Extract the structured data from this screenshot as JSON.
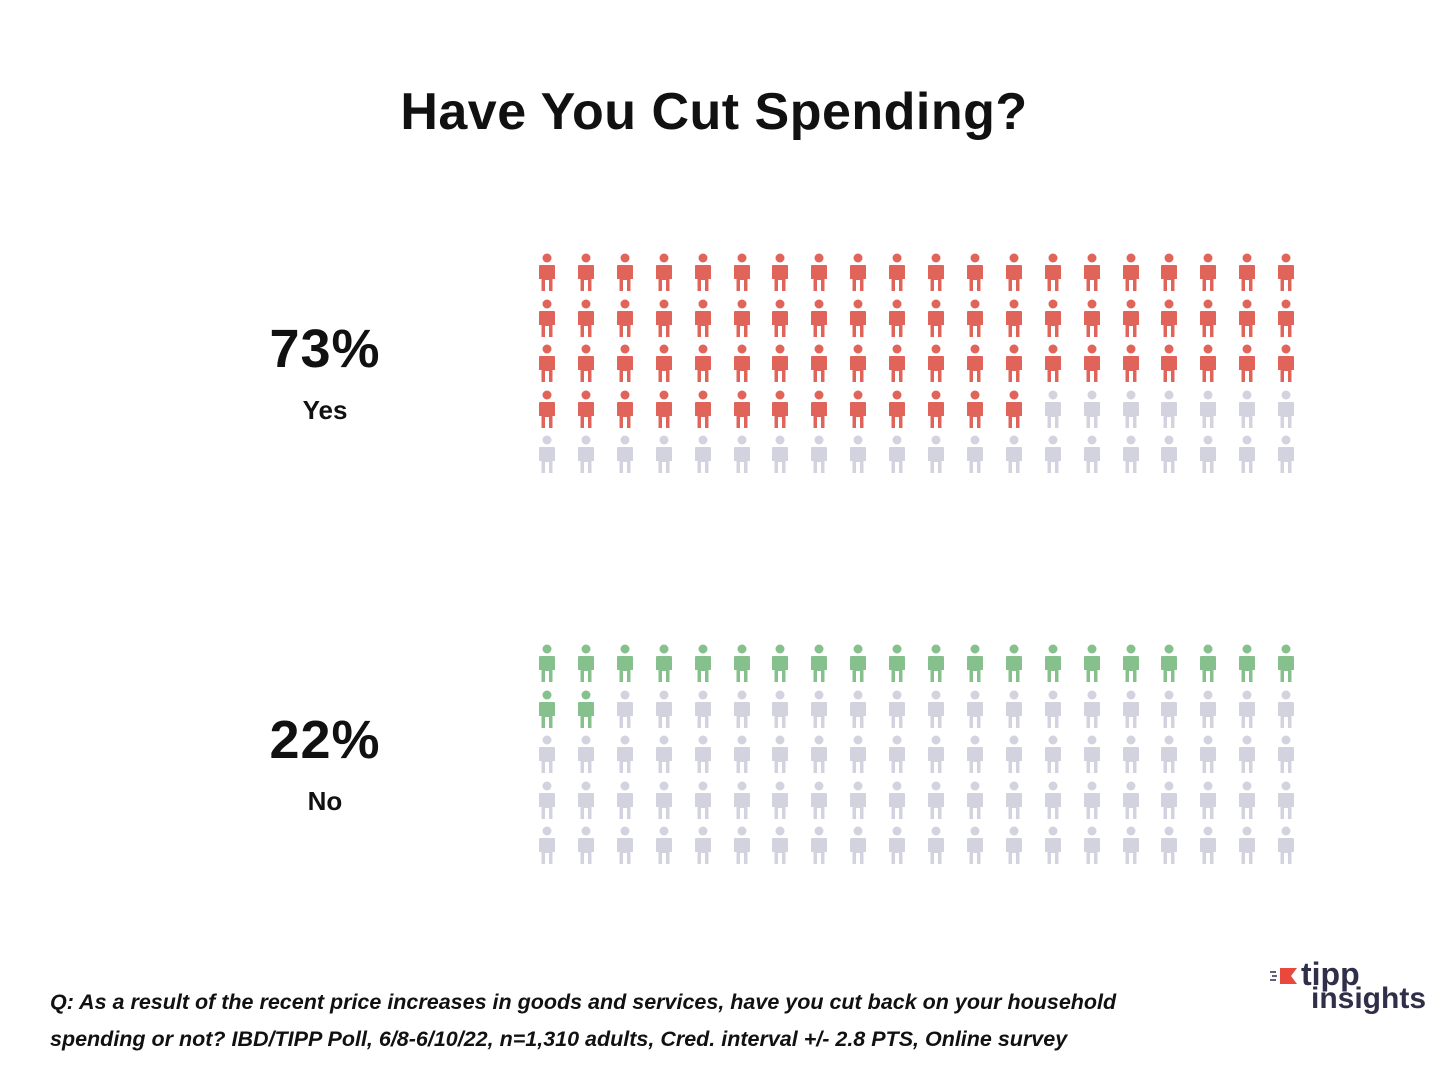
{
  "title": "Have You Cut Spending?",
  "chart_data": [
    {
      "type": "pictograph",
      "category": "Yes",
      "value": 73,
      "value_label": "73%",
      "total_icons": 100,
      "columns": 20,
      "filled_color": "#e06459",
      "empty_color": "#d3d3df"
    },
    {
      "type": "pictograph",
      "category": "No",
      "value": 22,
      "value_label": "22%",
      "total_icons": 100,
      "columns": 20,
      "filled_color": "#85c08d",
      "empty_color": "#d3d3df"
    }
  ],
  "footnote": {
    "line1": "Q: As a result of the recent price increases in goods and services, have you cut back on your household",
    "line2": "spending or not?  IBD/TIPP Poll, 6/8-6/10/22, n=1,310 adults, Cred. interval +/- 2.8 PTS, Online survey"
  },
  "logo": {
    "line1": "tipp",
    "line2": "insights",
    "accent_color": "#e8493c",
    "text_color": "#2f2f4a"
  }
}
